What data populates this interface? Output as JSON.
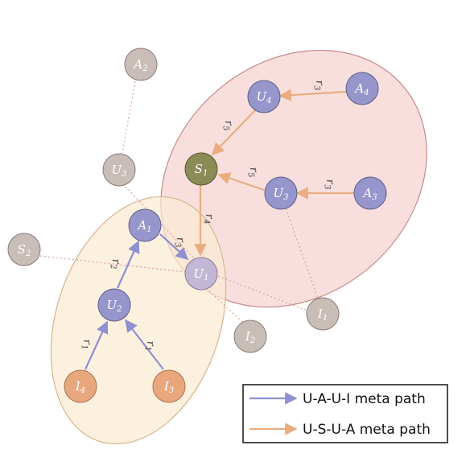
{
  "colors": {
    "user": "#9696cc",
    "author": "#9696cc",
    "item": "#e9a77e",
    "source": "#8a8b57",
    "gray_node": "#c9bdb7",
    "gray_stroke": "#8a7a74",
    "blue_arrow": "#8f8fd2",
    "orange_arrow": "#e9ad80",
    "pink_region_fill": "#f6d4d2",
    "pink_region_stroke": "#c58a8a",
    "yellow_region_fill": "#fbe9d1",
    "yellow_region_stroke": "#d7b48e",
    "dotted_link": "#d9a2a4"
  },
  "nodes": {
    "A2": {
      "base": "A",
      "sub": "2"
    },
    "U3_gray": {
      "base": "U",
      "sub": "3"
    },
    "S2": {
      "base": "S",
      "sub": "2"
    },
    "U4": {
      "base": "U",
      "sub": "4"
    },
    "A4": {
      "base": "A",
      "sub": "4"
    },
    "S1": {
      "base": "S",
      "sub": "1"
    },
    "U3": {
      "base": "U",
      "sub": "3"
    },
    "A3": {
      "base": "A",
      "sub": "3"
    },
    "A1": {
      "base": "A",
      "sub": "1"
    },
    "U1": {
      "base": "U",
      "sub": "1"
    },
    "U2": {
      "base": "U",
      "sub": "2"
    },
    "I1": {
      "base": "I",
      "sub": "1"
    },
    "I2": {
      "base": "I",
      "sub": "2"
    },
    "I3": {
      "base": "I",
      "sub": "3"
    },
    "I4": {
      "base": "I",
      "sub": "4"
    }
  },
  "relations": {
    "A4_U4": {
      "base": "r",
      "sub": "3"
    },
    "U4_S1": {
      "base": "r",
      "sub": "5"
    },
    "U3_S1": {
      "base": "r",
      "sub": "5"
    },
    "A3_U3": {
      "base": "r",
      "sub": "3"
    },
    "S1_U1": {
      "base": "r",
      "sub": "4"
    },
    "A1_U1": {
      "base": "r",
      "sub": "3"
    },
    "U2_A1": {
      "base": "r",
      "sub": "2"
    },
    "I4_U2": {
      "base": "r",
      "sub": "1"
    },
    "I3_U2": {
      "base": "r",
      "sub": "1"
    }
  },
  "legend": {
    "blue_label": "U-A-U-I meta path",
    "orange_label": "U-S-U-A meta path"
  }
}
